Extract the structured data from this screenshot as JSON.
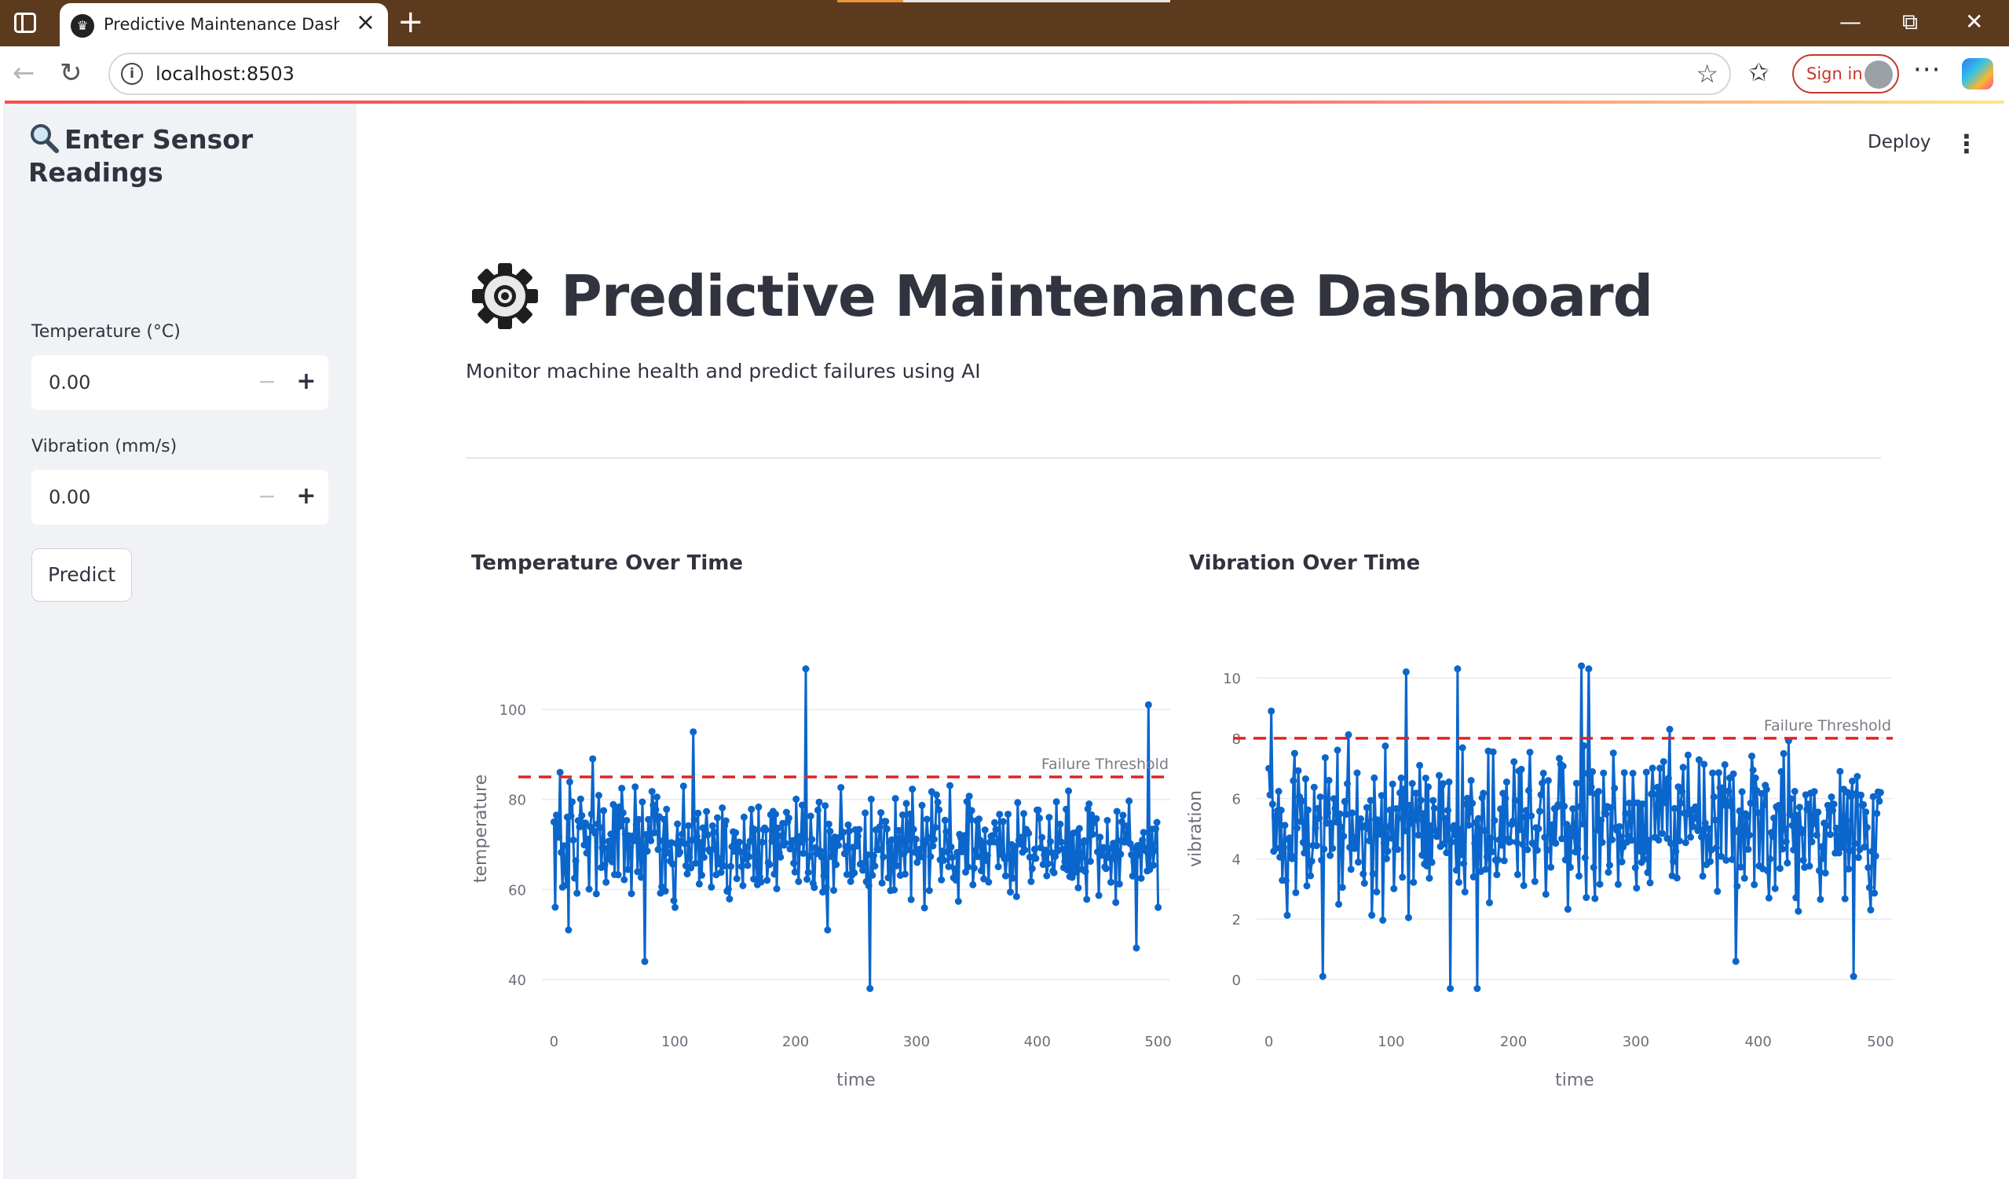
{
  "browser": {
    "tab_title": "Predictive Maintenance Dashboard",
    "tab_close": "×",
    "new_tab": "+",
    "url": "localhost:8503",
    "sign_in": "Sign in",
    "more": "···",
    "minimize": "—",
    "restore": "⧉",
    "close": "✕"
  },
  "app": {
    "deploy_label": "Deploy",
    "menu_label": "⋮"
  },
  "sidebar": {
    "title": "Enter Sensor Readings",
    "temperature_label": "Temperature (°C)",
    "temperature_value": "0.00",
    "vibration_label": "Vibration (mm/s)",
    "vibration_value": "0.00",
    "stepper_minus": "−",
    "stepper_plus": "+",
    "predict_label": "Predict"
  },
  "main": {
    "title": "Predictive Maintenance Dashboard",
    "subtitle": "Monitor machine health and predict failures using AI"
  },
  "colors": {
    "series": "#0b66cc",
    "threshold": "#e02424",
    "accent": "#ff4b4b"
  },
  "chart_data": [
    {
      "type": "line",
      "title": "Temperature Over Time",
      "xlabel": "time",
      "ylabel": "temperature",
      "xlim": [
        -10,
        510
      ],
      "ylim": [
        36,
        111
      ],
      "x_ticks": [
        "0",
        "100",
        "200",
        "300",
        "400",
        "500"
      ],
      "y_ticks": [
        "40",
        "60",
        "80",
        "100"
      ],
      "grid": true,
      "series": [
        {
          "x_start": 0,
          "x_end": 500,
          "mean": 70,
          "spread": 9,
          "n": 500,
          "highlights": [
            [
              0,
              75
            ],
            [
              5,
              86
            ],
            [
              12,
              51
            ],
            [
              32,
              89
            ],
            [
              75,
              44
            ],
            [
              100,
              56
            ],
            [
              115,
              95
            ],
            [
              208,
              109
            ],
            [
              226,
              51
            ],
            [
              262,
              38
            ],
            [
              482,
              47
            ],
            [
              492,
              101
            ],
            [
              500,
              56
            ]
          ]
        }
      ],
      "threshold": {
        "value": 85,
        "label": "Failure Threshold"
      }
    },
    {
      "type": "line",
      "title": "Vibration Over Time",
      "xlabel": "time",
      "ylabel": "vibration",
      "xlim": [
        -10,
        510
      ],
      "ylim": [
        -0.6,
        10.6
      ],
      "x_ticks": [
        "0",
        "100",
        "200",
        "300",
        "400",
        "500"
      ],
      "y_ticks": [
        "0",
        "2",
        "4",
        "6",
        "8",
        "10"
      ],
      "grid": true,
      "series": [
        {
          "x_start": 0,
          "x_end": 500,
          "mean": 5,
          "spread": 2,
          "n": 500,
          "highlights": [
            [
              0,
              7
            ],
            [
              2,
              8.9
            ],
            [
              44,
              0.1
            ],
            [
              112,
              10.2
            ],
            [
              148,
              -0.3
            ],
            [
              154,
              10.3
            ],
            [
              170,
              -0.3
            ],
            [
              256,
              10.4
            ],
            [
              262,
              10.3
            ],
            [
              382,
              0.6
            ],
            [
              478,
              0.1
            ],
            [
              500,
              6.2
            ]
          ]
        }
      ],
      "threshold": {
        "value": 8,
        "label": "Failure Threshold"
      }
    }
  ]
}
